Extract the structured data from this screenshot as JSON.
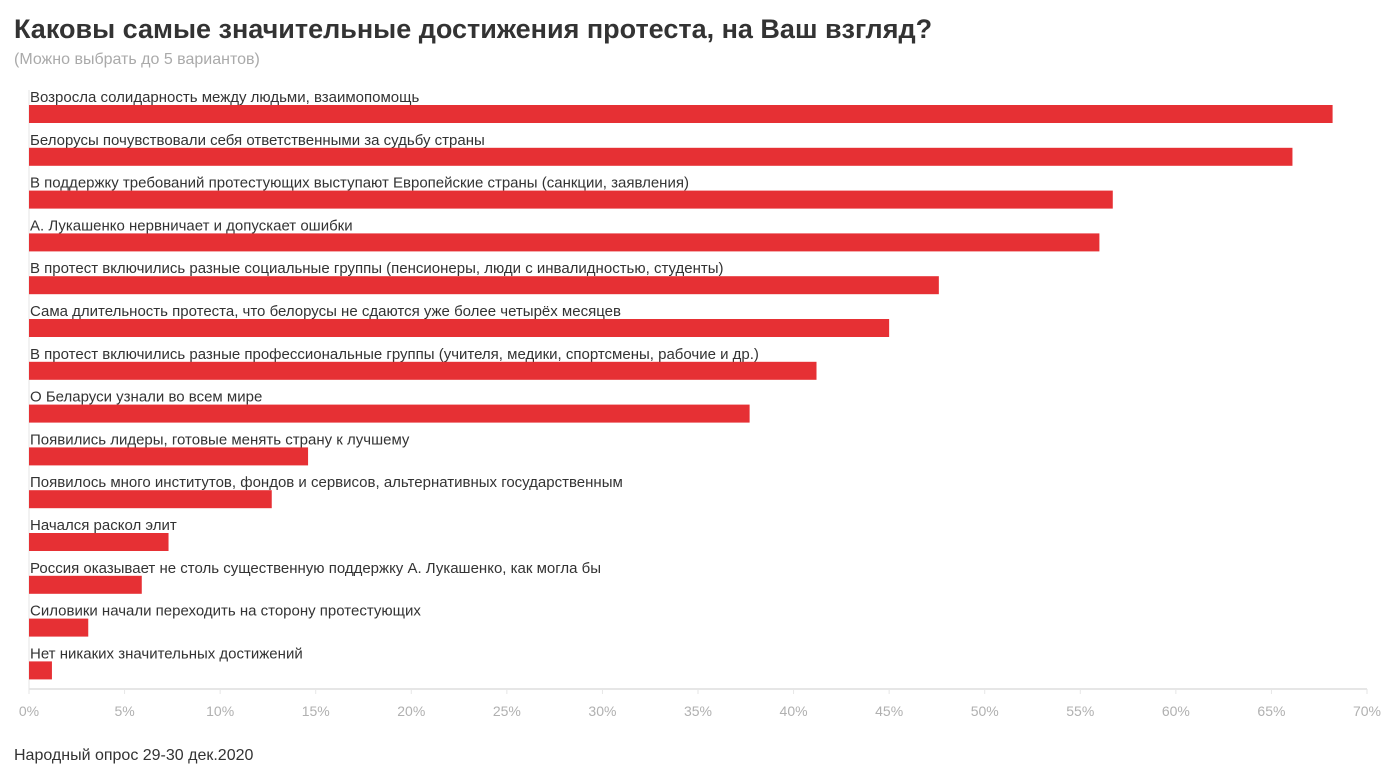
{
  "header": {
    "title": "Каковы самые значительные достижения протеста, на Ваш взгляд?",
    "subtitle": "(Можно выбрать до 5 вариантов)"
  },
  "footer": {
    "source": "Народный опрос 29-30 дек.2020"
  },
  "colors": {
    "bar": "#e63034",
    "axis": "#e6e6e6",
    "tick_text": "#b0b0b0",
    "label_text": "#333333"
  },
  "chart_data": {
    "type": "bar",
    "orientation": "horizontal",
    "categories": [
      "Возросла солидарность между людьми, взаимопомощь",
      "Белорусы почувствовали себя ответственными за судьбу страны",
      "В поддержку требований протестующих выступают Европейские страны (санкции, заявления)",
      "А. Лукашенко нервничает и допускает ошибки",
      "В протест включились разные социальные группы (пенсионеры, люди с инвалидностью, студенты)",
      "Сама длительность протеста, что белорусы не сдаются уже более четырёх месяцев",
      "В протест включились разные профессиональные группы (учителя, медики, спортсмены, рабочие и др.)",
      "О Беларуси узнали во всем мире",
      "Появились лидеры, готовые менять страну к лучшему",
      "Появилось много институтов, фондов и сервисов, альтернативных государственным",
      "Начался раскол элит",
      "Россия оказывает не столь существенную поддержку А. Лукашенко, как могла бы",
      "Силовики начали переходить на сторону протестующих",
      "Нет никаких значительных достижений"
    ],
    "values": [
      68.2,
      66.1,
      56.7,
      56.0,
      47.6,
      45.0,
      41.2,
      37.7,
      14.6,
      12.7,
      7.3,
      5.9,
      3.1,
      1.2
    ],
    "xlim": [
      0,
      70
    ],
    "xticks": [
      "0%",
      "5%",
      "10%",
      "15%",
      "20%",
      "25%",
      "30%",
      "35%",
      "40%",
      "45%",
      "50%",
      "55%",
      "60%",
      "65%",
      "70%"
    ],
    "xtick_values": [
      0,
      5,
      10,
      15,
      20,
      25,
      30,
      35,
      40,
      45,
      50,
      55,
      60,
      65,
      70
    ],
    "grid": false,
    "legend": "none"
  }
}
